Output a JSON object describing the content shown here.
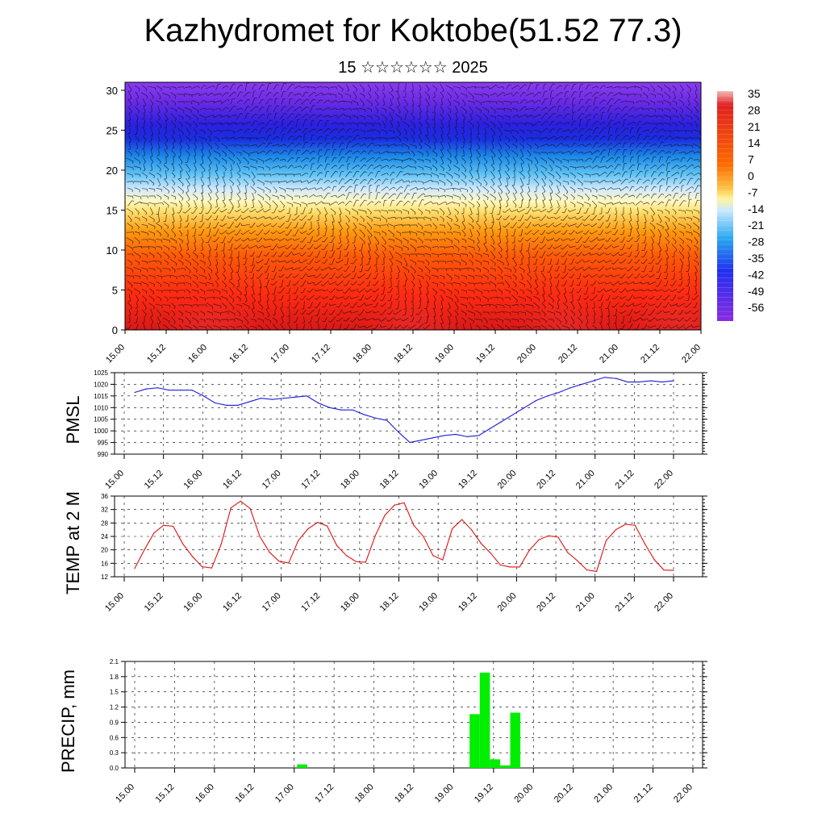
{
  "title": "Kazhydromet for Koktobe(51.52 77.3)",
  "subtitle": "15 ☆☆☆☆☆☆ 2025",
  "x_ticks": [
    "15.00",
    "15.12",
    "16.00",
    "16.12",
    "17.00",
    "17.12",
    "18.00",
    "18.12",
    "19.00",
    "19.12",
    "20.00",
    "20.12",
    "21.00",
    "21.12",
    "22.00"
  ],
  "chart_data": [
    {
      "type": "heatmap",
      "y_ticks": [
        0,
        5,
        10,
        15,
        20,
        25,
        30
      ],
      "ylim": [
        0,
        31
      ],
      "colorbar": {
        "labels": [
          "35",
          "28",
          "21",
          "14",
          "7",
          "0",
          "-7",
          "-14",
          "-21",
          "-28",
          "-35",
          "-42",
          "-49",
          "-56"
        ],
        "range": [
          -63,
          42
        ]
      },
      "overlay": "wind barbs"
    },
    {
      "type": "line",
      "ylabel": "PMSL",
      "ylim": [
        990,
        1025
      ],
      "y_ticks": [
        990,
        995,
        1000,
        1005,
        1010,
        1015,
        1020,
        1025
      ],
      "color": "#1a1adb",
      "step_hours": 6,
      "values": [
        1016.5,
        1018,
        1018.5,
        1017.5,
        1017.5,
        1017.5,
        1015,
        1012,
        1011,
        1011,
        1012.5,
        1014,
        1013.5,
        1014,
        1014.5,
        1015,
        1012,
        1010,
        1009,
        1009,
        1007,
        1005.5,
        1004.5,
        999.5,
        995,
        996,
        997,
        998,
        998.5,
        997.5,
        998,
        1001,
        1004,
        1007,
        1010,
        1013,
        1015,
        1016.5,
        1018.5,
        1020,
        1021.5,
        1023,
        1022.5,
        1021,
        1021,
        1021.5,
        1021,
        1021.5
      ]
    },
    {
      "type": "line",
      "ylabel": "TEMP at 2 M",
      "ylim": [
        12,
        36
      ],
      "y_ticks": [
        12,
        16,
        20,
        24,
        28,
        32,
        36
      ],
      "color": "#e01010",
      "step_hours": 3,
      "values": [
        14.5,
        20,
        25,
        27.3,
        27,
        21.8,
        18,
        15,
        14.6,
        21.8,
        32.5,
        34.5,
        32.3,
        24,
        19.3,
        16.6,
        16.1,
        22.8,
        26.2,
        28.2,
        27.1,
        21.3,
        18.3,
        16.5,
        16.3,
        24.2,
        30.3,
        33.3,
        34,
        27.3,
        24,
        18.3,
        17,
        26.3,
        29,
        26,
        21.9,
        19,
        15.5,
        14.9,
        14.9,
        19.8,
        23,
        24.2,
        23.8,
        19.2,
        16.8,
        14,
        13.6,
        22.8,
        26,
        27.6,
        27.3,
        21.9,
        17.1,
        14,
        13.9
      ]
    },
    {
      "type": "bar",
      "ylabel": "PRECIP, mm",
      "ylim": [
        0,
        2.1
      ],
      "y_ticks": [
        "0.0",
        "0.3",
        "0.6",
        "0.9",
        "1.2",
        "1.5",
        "1.8",
        "2.1"
      ],
      "color": "#00ee00",
      "step_hours": 3,
      "values": [
        0,
        0,
        0,
        0,
        0,
        0,
        0,
        0,
        0,
        0,
        0,
        0,
        0,
        0,
        0,
        0,
        0.07,
        0,
        0,
        0,
        0,
        0,
        0,
        0,
        0,
        0,
        0,
        0,
        0,
        0,
        0,
        0,
        0,
        1.06,
        1.88,
        0.17,
        0.05,
        1.09,
        0,
        0,
        0,
        0,
        0,
        0,
        0,
        0,
        0,
        0,
        0,
        0,
        0,
        0,
        0,
        0,
        0,
        0
      ]
    }
  ]
}
